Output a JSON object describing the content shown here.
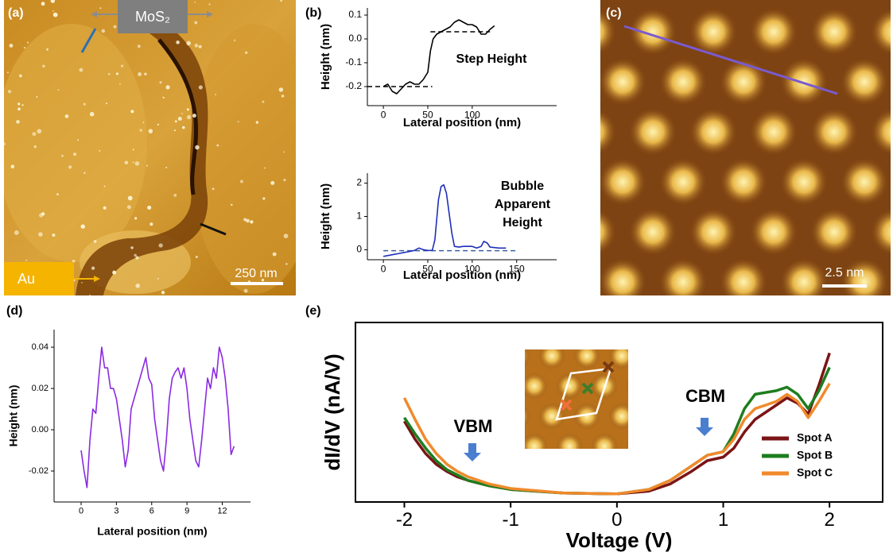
{
  "panel_labels": [
    "(a)",
    "(b)",
    "(c)",
    "(d)",
    "(e)"
  ],
  "image_a": {
    "top_label": "MoS₂",
    "bottom_label": "Au",
    "scale_bar": "250 nm"
  },
  "image_c": {
    "scale_bar": "2.5 nm"
  },
  "chart_data": [
    {
      "type": "line",
      "xlabel": "Lateral position (nm)",
      "ylabel": "Height (nm)",
      "x": [
        0,
        5,
        10,
        15,
        20,
        25,
        30,
        35,
        40,
        45,
        50,
        53,
        56,
        60,
        65,
        70,
        75,
        80,
        85,
        90,
        95,
        100,
        105,
        110,
        115,
        120,
        125
      ],
      "series": [
        {
          "color": "#000000",
          "values": [
            -0.2,
            -0.19,
            -0.22,
            -0.23,
            -0.21,
            -0.19,
            -0.18,
            -0.19,
            -0.19,
            -0.17,
            -0.14,
            -0.05,
            0.0,
            0.02,
            0.03,
            0.04,
            0.05,
            0.07,
            0.08,
            0.07,
            0.06,
            0.06,
            0.05,
            0.02,
            0.02,
            0.04,
            0.055
          ]
        }
      ],
      "reference_lines": [
        {
          "y": -0.2,
          "x": [
            -18,
            55
          ],
          "color": "#000000"
        },
        {
          "y": 0.03,
          "x": [
            53,
            120
          ],
          "color": "#000000"
        }
      ],
      "annotations": [
        "Step Height"
      ],
      "xlim": [
        -18,
        195
      ],
      "ylim": [
        -0.28,
        0.13
      ],
      "xticks": [
        0,
        50,
        100
      ],
      "yticks": [
        -0.2,
        -0.1,
        {
          "value": 0,
          "label": "0.0"
        },
        0.1
      ]
    },
    {
      "type": "line",
      "xlabel": "Lateral position (nm)",
      "ylabel": "Height (nm)",
      "x": [
        0,
        10,
        20,
        30,
        35,
        40,
        45,
        50,
        55,
        58,
        62,
        65,
        68,
        71,
        74,
        77,
        80,
        85,
        90,
        100,
        105,
        110,
        113,
        117,
        120,
        130,
        138
      ],
      "series": [
        {
          "color": "#1f2fb8",
          "values": [
            -0.2,
            -0.15,
            -0.1,
            -0.05,
            -0.02,
            0.05,
            0.0,
            -0.02,
            -0.02,
            0.3,
            1.5,
            1.9,
            1.95,
            1.7,
            1.1,
            0.5,
            0.1,
            0.08,
            0.1,
            0.1,
            0.05,
            0.1,
            0.25,
            0.2,
            0.08,
            0.05,
            0.05
          ]
        }
      ],
      "reference_lines": [
        {
          "y": -0.03,
          "x": [
            0,
            150
          ],
          "color": "#3a5fa0"
        }
      ],
      "annotations": [
        "Bubble",
        "Apparent",
        "Height"
      ],
      "xlim": [
        -18,
        195
      ],
      "ylim": [
        -0.3,
        2.3
      ],
      "xticks": [
        0,
        50,
        100,
        150
      ],
      "yticks": [
        0,
        1,
        2
      ]
    },
    {
      "type": "line",
      "xlabel": "Lateral position (nm)",
      "ylabel": "Height (nm)",
      "x": [
        0,
        0.25,
        0.5,
        0.75,
        1,
        1.25,
        1.5,
        1.75,
        2,
        2.25,
        2.5,
        2.75,
        3,
        3.25,
        3.5,
        3.75,
        4,
        4.25,
        4.5,
        4.75,
        5,
        5.25,
        5.5,
        5.75,
        6,
        6.25,
        6.5,
        6.75,
        7,
        7.25,
        7.5,
        7.75,
        8,
        8.25,
        8.5,
        8.75,
        9,
        9.25,
        9.5,
        9.75,
        10,
        10.25,
        10.5,
        10.75,
        11,
        11.25,
        11.5,
        11.75,
        12,
        12.25,
        12.5,
        12.75,
        13
      ],
      "series": [
        {
          "color": "#8a2be2",
          "values": [
            -0.01,
            -0.02,
            -0.028,
            -0.005,
            0.01,
            0.008,
            0.025,
            0.04,
            0.03,
            0.03,
            0.02,
            0.02,
            0.015,
            0.005,
            -0.005,
            -0.018,
            -0.01,
            0.01,
            0.015,
            0.02,
            0.025,
            0.03,
            0.035,
            0.025,
            0.022,
            0.005,
            -0.005,
            -0.015,
            -0.02,
            -0.005,
            0.015,
            0.025,
            0.028,
            0.03,
            0.025,
            0.03,
            0.02,
            0.005,
            -0.005,
            -0.015,
            -0.018,
            -0.005,
            0.01,
            0.025,
            0.02,
            0.03,
            0.025,
            0.04,
            0.035,
            0.025,
            0.01,
            -0.012,
            -0.008
          ]
        }
      ],
      "xlim": [
        -2.3,
        14.4
      ],
      "ylim": [
        -0.035,
        0.0485
      ],
      "xticks": [
        0,
        3,
        6,
        9,
        12
      ],
      "yticks": [
        -0.02,
        {
          "value": 0,
          "label": "0.00"
        },
        0.02,
        0.04
      ]
    },
    {
      "type": "line",
      "xlabel": "Voltage (V)",
      "ylabel": "dI/dV (nA/V)",
      "x": [
        -2,
        -1.9,
        -1.8,
        -1.7,
        -1.6,
        -1.5,
        -1.4,
        -1.2,
        -1,
        -0.5,
        0,
        0.3,
        0.5,
        0.7,
        0.85,
        1,
        1.1,
        1.2,
        1.3,
        1.4,
        1.5,
        1.6,
        1.7,
        1.8,
        1.9,
        2
      ],
      "series": [
        {
          "name": "Spot A",
          "color": "#7b1416",
          "values": [
            4.5,
            3.5,
            2.7,
            2.1,
            1.7,
            1.4,
            1.2,
            0.9,
            0.7,
            0.5,
            0.45,
            0.6,
            1.0,
            1.7,
            2.3,
            2.5,
            3.0,
            3.9,
            4.6,
            5.0,
            5.4,
            5.8,
            5.5,
            4.9,
            6.5,
            8.3
          ]
        },
        {
          "name": "Spot B",
          "color": "#1e7d1e",
          "values": [
            4.7,
            3.8,
            3.0,
            2.3,
            1.8,
            1.5,
            1.2,
            0.9,
            0.7,
            0.5,
            0.45,
            0.7,
            1.2,
            2.0,
            2.6,
            2.8,
            3.8,
            5.2,
            6.0,
            6.1,
            6.2,
            6.4,
            6.0,
            5.2,
            6.2,
            7.5
          ]
        },
        {
          "name": "Spot C",
          "color": "#f08a2c",
          "values": [
            5.8,
            4.6,
            3.5,
            2.7,
            2.1,
            1.7,
            1.4,
            1.0,
            0.75,
            0.5,
            0.45,
            0.7,
            1.2,
            2.0,
            2.6,
            2.8,
            3.5,
            4.6,
            5.2,
            5.4,
            5.6,
            6.0,
            5.6,
            4.7,
            5.6,
            6.6
          ]
        }
      ],
      "annotations": [
        "VBM",
        "CBM"
      ],
      "xlim": [
        -2.46,
        2.5
      ],
      "ylim": [
        0,
        10
      ],
      "xticks": [
        -2,
        -1,
        0,
        1,
        2
      ]
    }
  ]
}
